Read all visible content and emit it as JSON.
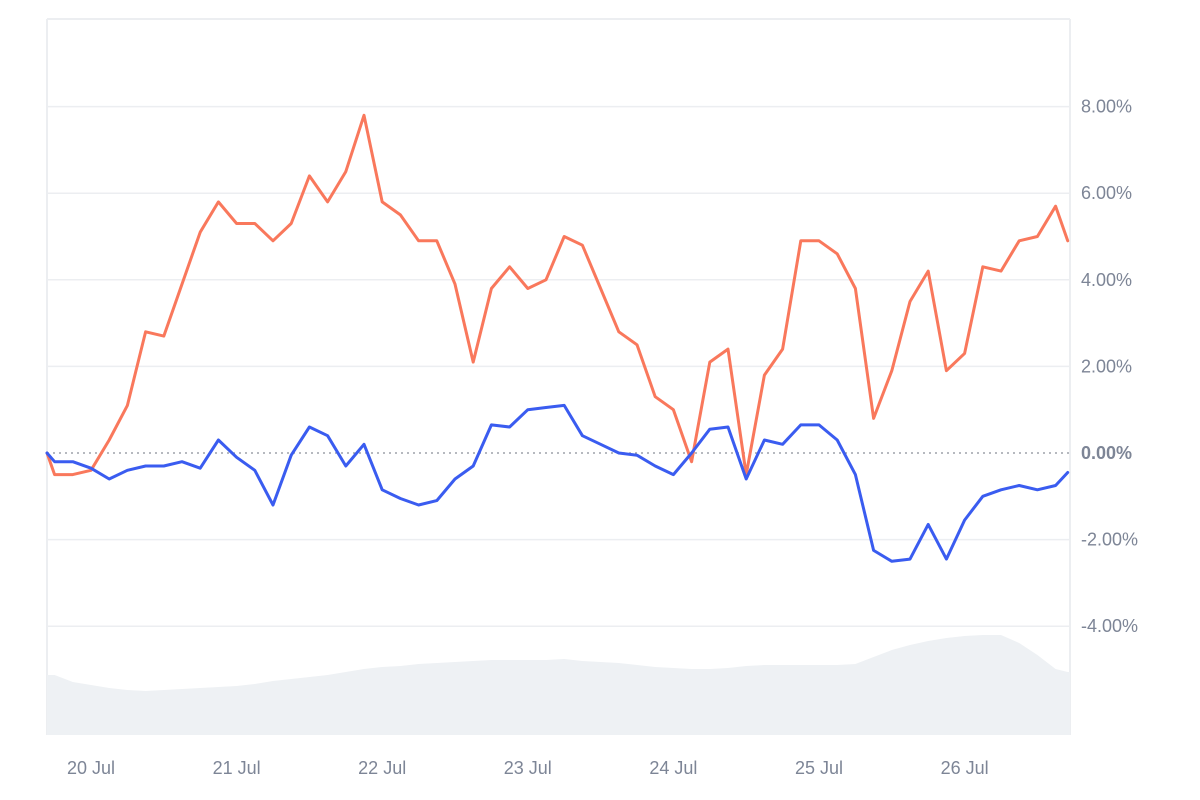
{
  "chart_data": {
    "type": "line",
    "title": "",
    "xlabel": "",
    "ylabel": "",
    "ylim": [
      -6.6,
      10
    ],
    "y_ticks": [
      "8.00%",
      "6.00%",
      "4.00%",
      "2.00%",
      "0.00%",
      "-2.00%",
      "-4.00%"
    ],
    "y_tick_values": [
      8,
      6,
      4,
      2,
      0,
      -2,
      -4
    ],
    "x_ticks": [
      "20 Jul",
      "21 Jul",
      "22 Jul",
      "23 Jul",
      "24 Jul",
      "25 Jul",
      "26 Jul"
    ],
    "xlim": [
      "19 Jul 17:00",
      "26 Jul 17:30"
    ],
    "grid": true,
    "zero_line": "dotted",
    "legend": "none",
    "y_axis_side": "right",
    "times": [
      "19 Jul 18:00",
      "19 Jul 21:00",
      "20 Jul 00:00",
      "20 Jul 03:00",
      "20 Jul 06:00",
      "20 Jul 09:00",
      "20 Jul 12:00",
      "20 Jul 15:00",
      "20 Jul 18:00",
      "20 Jul 21:00",
      "21 Jul 00:00",
      "21 Jul 03:00",
      "21 Jul 06:00",
      "21 Jul 09:00",
      "21 Jul 12:00",
      "21 Jul 15:00",
      "21 Jul 18:00",
      "21 Jul 21:00",
      "22 Jul 00:00",
      "22 Jul 03:00",
      "22 Jul 06:00",
      "22 Jul 09:00",
      "22 Jul 12:00",
      "22 Jul 15:00",
      "22 Jul 18:00",
      "22 Jul 21:00",
      "23 Jul 00:00",
      "23 Jul 03:00",
      "23 Jul 06:00",
      "23 Jul 09:00",
      "23 Jul 12:00",
      "23 Jul 15:00",
      "23 Jul 18:00",
      "23 Jul 21:00",
      "24 Jul 00:00",
      "24 Jul 03:00",
      "24 Jul 06:00",
      "24 Jul 09:00",
      "24 Jul 12:00",
      "24 Jul 15:00",
      "24 Jul 18:00",
      "24 Jul 21:00",
      "25 Jul 00:00",
      "25 Jul 03:00",
      "25 Jul 06:00",
      "25 Jul 09:00",
      "25 Jul 12:00",
      "25 Jul 15:00",
      "25 Jul 18:00",
      "25 Jul 21:00",
      "26 Jul 00:00",
      "26 Jul 03:00",
      "26 Jul 06:00",
      "26 Jul 09:00",
      "26 Jul 12:00",
      "26 Jul 15:00",
      "26 Jul 17:00"
    ],
    "series": [
      {
        "color": "#f9785c",
        "unit": "%",
        "values": [
          -0.5,
          -0.5,
          -0.4,
          0.3,
          1.1,
          2.8,
          2.7,
          3.9,
          5.1,
          5.8,
          5.3,
          5.3,
          4.9,
          5.3,
          6.4,
          5.8,
          6.5,
          7.8,
          5.8,
          5.5,
          4.9,
          4.9,
          3.9,
          2.1,
          3.8,
          4.3,
          3.8,
          4.0,
          5.0,
          4.8,
          3.8,
          2.8,
          2.5,
          1.3,
          1.0,
          -0.2,
          2.1,
          2.4,
          -0.5,
          1.8,
          2.4,
          4.9,
          4.9,
          4.6,
          3.8,
          0.8,
          1.9,
          3.5,
          4.2,
          1.9,
          2.3,
          4.3,
          4.2,
          4.9,
          5.0,
          5.7,
          4.9
        ]
      },
      {
        "color": "#3a5cf0",
        "unit": "%",
        "values": [
          -0.2,
          -0.2,
          -0.35,
          -0.6,
          -0.4,
          -0.3,
          -0.3,
          -0.2,
          -0.35,
          0.3,
          -0.1,
          -0.4,
          -1.2,
          -0.05,
          0.6,
          0.4,
          -0.3,
          0.2,
          -0.85,
          -1.05,
          -1.2,
          -1.1,
          -0.6,
          -0.3,
          0.65,
          0.6,
          1.0,
          1.05,
          1.1,
          0.4,
          0.2,
          0.0,
          -0.05,
          -0.3,
          -0.5,
          0.0,
          0.55,
          0.6,
          -0.6,
          0.3,
          0.2,
          0.65,
          0.65,
          0.3,
          -0.5,
          -2.25,
          -2.5,
          -2.45,
          -1.65,
          -2.45,
          -1.55,
          -1.0,
          -0.85,
          -0.75,
          -0.85,
          -0.75,
          -0.45
        ]
      }
    ],
    "volume": {
      "type": "area",
      "color": "#eef1f4",
      "relative_values": [
        60,
        53,
        50,
        47,
        45,
        44,
        45,
        46,
        47,
        48,
        49,
        51,
        54,
        56,
        58,
        60,
        63,
        66,
        68,
        69,
        71,
        72,
        73,
        74,
        75,
        75,
        75,
        75,
        76,
        74,
        73,
        72,
        70,
        68,
        67,
        66,
        66,
        67,
        69,
        70,
        70,
        70,
        70,
        70,
        71,
        78,
        85,
        90,
        94,
        97,
        99,
        100,
        100,
        92,
        80,
        66,
        63
      ]
    }
  }
}
